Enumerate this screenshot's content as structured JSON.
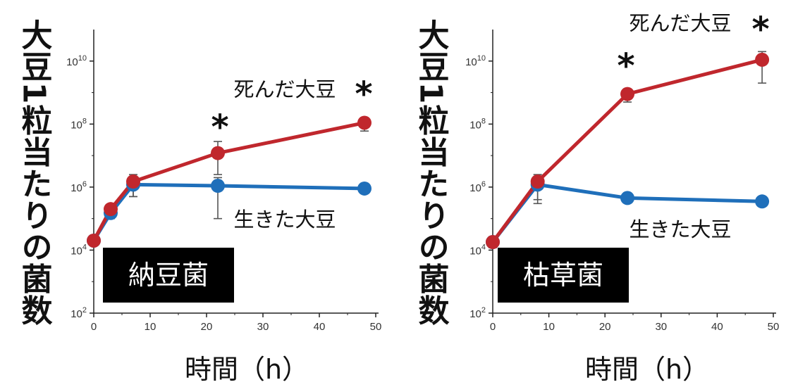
{
  "chart_data": [
    {
      "type": "line",
      "ylabel": "大豆1粒当たりの菌数",
      "xlabel": "時間（h）",
      "label_box": "納豆菌",
      "xlim": [
        0,
        50
      ],
      "xticks": [
        "0",
        "10",
        "20",
        "30",
        "40",
        "50"
      ],
      "yscale": "log",
      "ylim": [
        100,
        100000000000
      ],
      "yticks": [
        {
          "value": 100,
          "base": "10",
          "exp": "2"
        },
        {
          "value": 10000,
          "base": "10",
          "exp": "4"
        },
        {
          "value": 1000000,
          "base": "10",
          "exp": "6"
        },
        {
          "value": 100000000,
          "base": "10",
          "exp": "8"
        },
        {
          "value": 10000000000,
          "base": "10",
          "exp": "10"
        }
      ],
      "series": [
        {
          "name": "死んだ大豆",
          "color": "#c0272d",
          "x": [
            0,
            3,
            7,
            22,
            48
          ],
          "y": [
            20000,
            200000,
            1500000,
            12000000,
            110000000
          ],
          "err_low": [
            15000,
            150000,
            500000,
            2500000,
            60000000
          ],
          "err_high": [
            28000,
            280000,
            2500000,
            28000000,
            150000000
          ]
        },
        {
          "name": "生きた大豆",
          "color": "#1f6fba",
          "x": [
            0,
            3,
            7,
            22,
            48
          ],
          "y": [
            20000,
            150000,
            1200000,
            1100000,
            900000
          ],
          "err_low": [
            14000,
            100000,
            500000,
            100000,
            700000
          ],
          "err_high": [
            28000,
            220000,
            2000000,
            2000000,
            1200000
          ]
        }
      ],
      "annotations": [
        "*",
        "*"
      ]
    },
    {
      "type": "line",
      "ylabel": "大豆1粒当たりの菌数",
      "xlabel": "時間（h）",
      "label_box": "枯草菌",
      "xlim": [
        0,
        50
      ],
      "xticks": [
        "0",
        "10",
        "20",
        "30",
        "40",
        "50"
      ],
      "yscale": "log",
      "ylim": [
        100,
        100000000000
      ],
      "yticks": [
        {
          "value": 100,
          "base": "10",
          "exp": "2"
        },
        {
          "value": 10000,
          "base": "10",
          "exp": "4"
        },
        {
          "value": 1000000,
          "base": "10",
          "exp": "6"
        },
        {
          "value": 100000000,
          "base": "10",
          "exp": "8"
        },
        {
          "value": 10000000000,
          "base": "10",
          "exp": "10"
        }
      ],
      "series": [
        {
          "name": "死んだ大豆",
          "color": "#c0272d",
          "x": [
            0,
            8,
            24,
            48
          ],
          "y": [
            18000,
            1500000,
            900000000,
            11000000000
          ],
          "err_low": [
            12000,
            400000,
            500000000,
            2000000000
          ],
          "err_high": [
            25000,
            2500000,
            1200000000,
            20000000000
          ]
        },
        {
          "name": "生きた大豆",
          "color": "#1f6fba",
          "x": [
            0,
            8,
            24,
            48
          ],
          "y": [
            18000,
            1200000,
            450000,
            350000
          ],
          "err_low": [
            12000,
            300000,
            350000,
            250000
          ],
          "err_high": [
            25000,
            2000000,
            550000,
            450000
          ]
        }
      ],
      "annotations": [
        "*",
        "*"
      ]
    }
  ]
}
